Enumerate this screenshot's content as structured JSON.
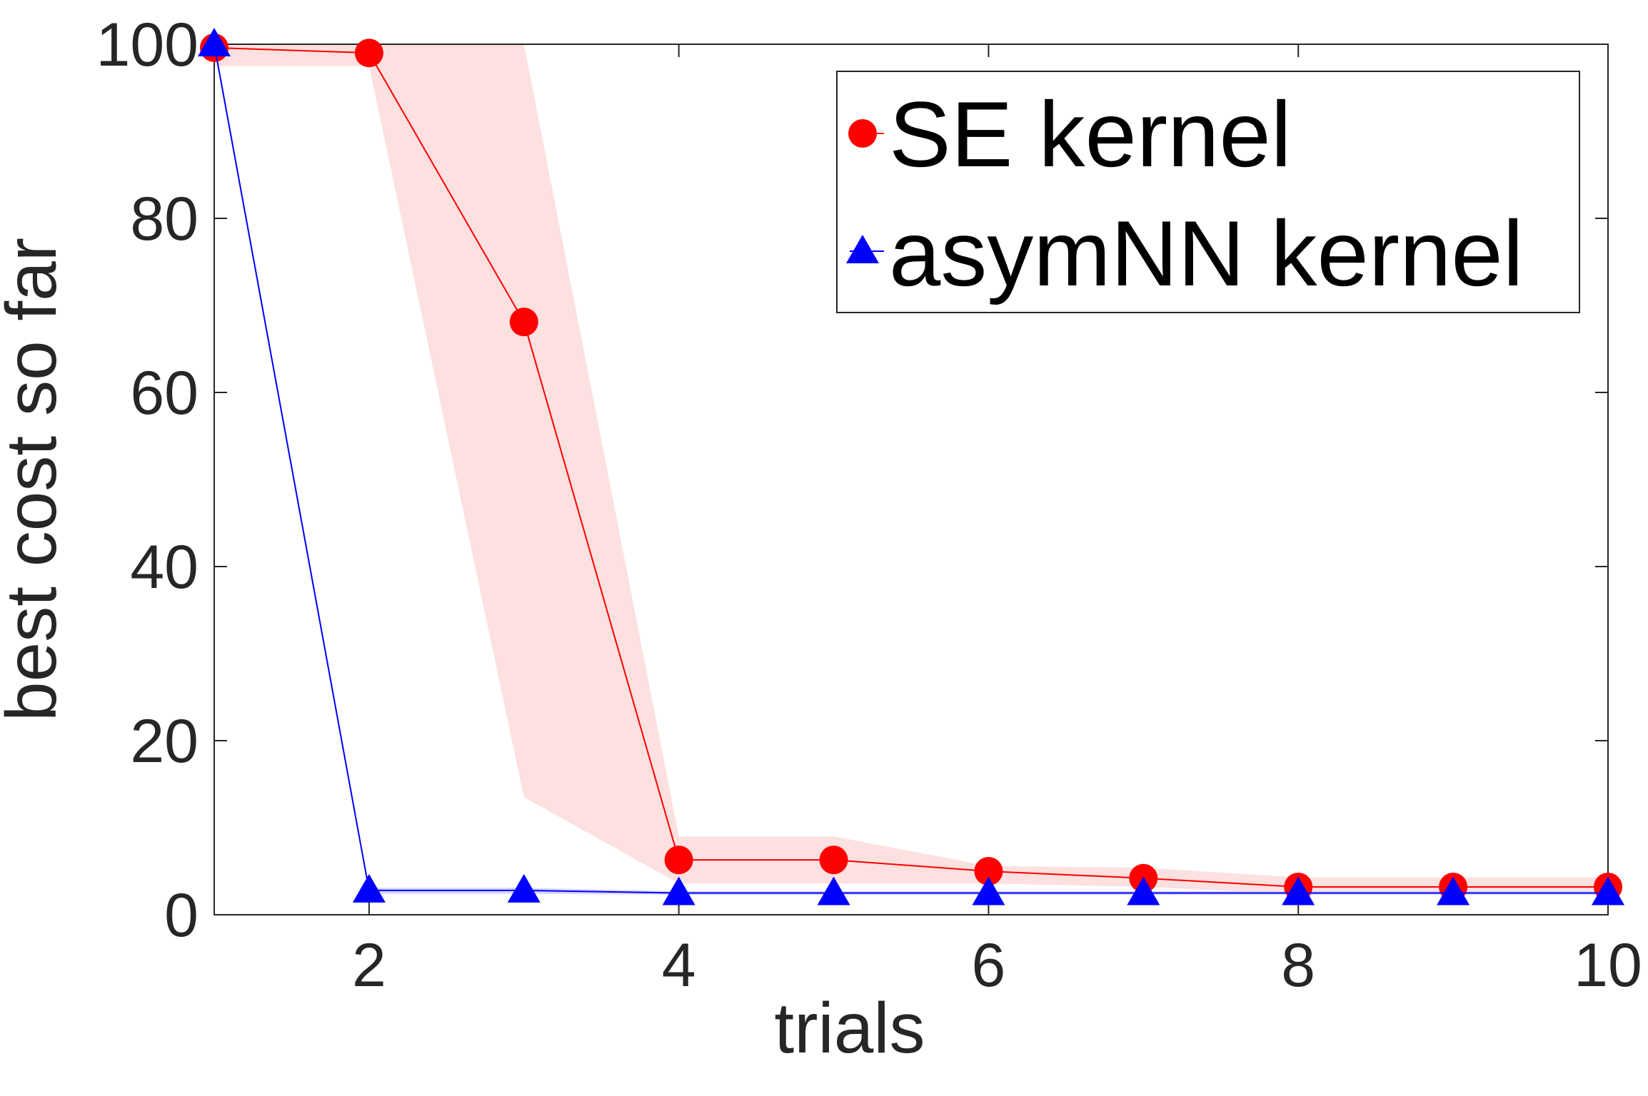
{
  "chart_data": {
    "type": "line",
    "title": "",
    "xlabel": "trials",
    "ylabel": "best cost so far",
    "xlim": [
      1,
      10
    ],
    "ylim": [
      0,
      100
    ],
    "xticks": [
      "2",
      "4",
      "6",
      "8",
      "10"
    ],
    "yticks": [
      "0",
      "20",
      "40",
      "60",
      "80",
      "100"
    ],
    "grid": false,
    "legend_position": "top-right",
    "x": [
      1,
      2,
      3,
      4,
      5,
      6,
      7,
      8,
      9,
      10
    ],
    "series": [
      {
        "name": "SE kernel",
        "color": "#ff0000",
        "band_color": "#fde0e0",
        "marker": "circle",
        "values": [
          99.6,
          99.0,
          68.1,
          6.3,
          6.3,
          5.0,
          4.2,
          3.2,
          3.2,
          3.2
        ],
        "band_lower": [
          97.5,
          97.5,
          13.5,
          3.6,
          3.6,
          3.6,
          3.2,
          2.4,
          2.4,
          2.4
        ],
        "band_upper": [
          100,
          100,
          100,
          9.0,
          9.0,
          5.6,
          5.4,
          4.3,
          4.3,
          4.3
        ]
      },
      {
        "name": "asymNN kernel",
        "color": "#0000ff",
        "band_color": "#d8d8ff",
        "marker": "triangle",
        "values": [
          100.0,
          2.8,
          2.8,
          2.5,
          2.5,
          2.5,
          2.5,
          2.5,
          2.5,
          2.5
        ],
        "band_lower": [
          99.5,
          2.4,
          2.4,
          2.3,
          2.3,
          2.3,
          2.3,
          2.3,
          2.3,
          2.3
        ],
        "band_upper": [
          100,
          3.1,
          3.1,
          2.7,
          2.7,
          2.7,
          2.7,
          2.7,
          2.7,
          2.7
        ]
      }
    ]
  }
}
